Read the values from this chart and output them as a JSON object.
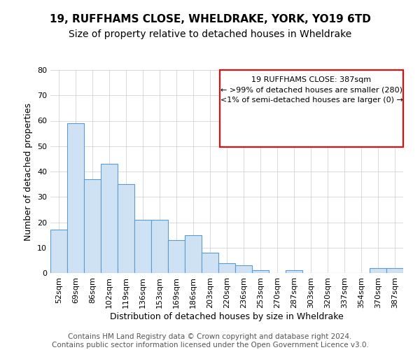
{
  "title1": "19, RUFFHAMS CLOSE, WHELDRAKE, YORK, YO19 6TD",
  "title2": "Size of property relative to detached houses in Wheldrake",
  "xlabel": "Distribution of detached houses by size in Wheldrake",
  "ylabel": "Number of detached properties",
  "categories": [
    "52sqm",
    "69sqm",
    "86sqm",
    "102sqm",
    "119sqm",
    "136sqm",
    "153sqm",
    "169sqm",
    "186sqm",
    "203sqm",
    "220sqm",
    "236sqm",
    "253sqm",
    "270sqm",
    "287sqm",
    "303sqm",
    "320sqm",
    "337sqm",
    "354sqm",
    "370sqm",
    "387sqm"
  ],
  "values": [
    17,
    59,
    37,
    43,
    35,
    21,
    21,
    13,
    15,
    8,
    4,
    3,
    1,
    0,
    1,
    0,
    0,
    0,
    0,
    2,
    2
  ],
  "bar_color": "#cfe2f3",
  "bar_edge_color": "#5b9bd5",
  "annotation_line1": "19 RUFFHAMS CLOSE: 387sqm",
  "annotation_line2": "← >99% of detached houses are smaller (280)",
  "annotation_line3": "<1% of semi-detached houses are larger (0) →",
  "annotation_box_edge_color": "red",
  "annotation_box_fill": "white",
  "ylim": [
    0,
    80
  ],
  "yticks": [
    0,
    10,
    20,
    30,
    40,
    50,
    60,
    70,
    80
  ],
  "footer_text": "Contains HM Land Registry data © Crown copyright and database right 2024.\nContains public sector information licensed under the Open Government Licence v3.0.",
  "background_color": "#ffffff",
  "plot_bg_color": "#ffffff",
  "grid_color": "#cccccc",
  "title1_fontsize": 11,
  "title2_fontsize": 10,
  "xlabel_fontsize": 9,
  "ylabel_fontsize": 9,
  "tick_fontsize": 8,
  "annotation_fontsize": 8,
  "footer_fontsize": 7.5
}
